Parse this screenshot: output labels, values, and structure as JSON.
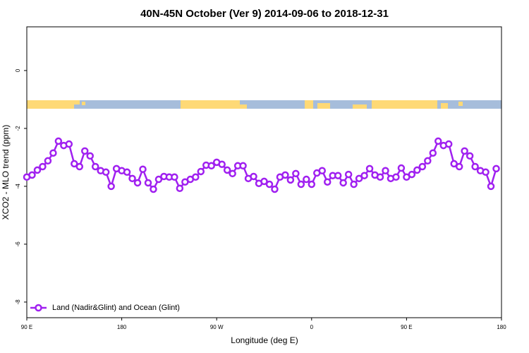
{
  "chart_data": {
    "type": "line",
    "title": "40N-45N October (Ver 9)   2014-09-06 to 2018-12-31",
    "x_label": "Longitude (deg E)",
    "y_label": "XCO2 - MLO trend (ppm)",
    "x": [
      90,
      95,
      100,
      105,
      110,
      115,
      120,
      125,
      130,
      135,
      140,
      145,
      150,
      155,
      160,
      165,
      170,
      175,
      180,
      185,
      190,
      195,
      200,
      205,
      210,
      215,
      220,
      225,
      230,
      235,
      240,
      245,
      250,
      255,
      260,
      265,
      270,
      275,
      280,
      285,
      290,
      295,
      300,
      305,
      310,
      315,
      320,
      325,
      330,
      335,
      340,
      345,
      350,
      355,
      360,
      365,
      370,
      375,
      380,
      385,
      390,
      395,
      400,
      405,
      410,
      415,
      420,
      425,
      430,
      435,
      440,
      445,
      450,
      455,
      460,
      465,
      470,
      475,
      480,
      485,
      490,
      495,
      500,
      505,
      510,
      515,
      520,
      525,
      530,
      535
    ],
    "series": [
      {
        "name": "Land (Nadir&Glint) and Ocean (Glint)",
        "color": "#a020f0",
        "values": [
          -3.68,
          -3.61,
          -3.44,
          -3.32,
          -3.12,
          -2.85,
          -2.44,
          -2.59,
          -2.54,
          -3.22,
          -3.32,
          -2.78,
          -2.95,
          -3.32,
          -3.46,
          -3.51,
          -4.0,
          -3.39,
          -3.46,
          -3.51,
          -3.73,
          -3.88,
          -3.41,
          -3.88,
          -4.1,
          -3.76,
          -3.66,
          -3.68,
          -3.68,
          -4.07,
          -3.85,
          -3.76,
          -3.68,
          -3.49,
          -3.27,
          -3.29,
          -3.17,
          -3.24,
          -3.44,
          -3.56,
          -3.29,
          -3.29,
          -3.73,
          -3.66,
          -3.9,
          -3.83,
          -3.93,
          -4.1,
          -3.68,
          -3.61,
          -3.78,
          -3.56,
          -3.93,
          -3.76,
          -3.93,
          -3.54,
          -3.46,
          -3.85,
          -3.63,
          -3.63,
          -3.88,
          -3.59,
          -3.93,
          -3.73,
          -3.63,
          -3.39,
          -3.61,
          -3.68,
          -3.46,
          -3.73,
          -3.68,
          -3.37,
          -3.68,
          -3.59,
          -3.44,
          -3.32,
          -3.12,
          -2.85,
          -2.44,
          -2.59,
          -2.54,
          -3.22,
          -3.32,
          -2.78,
          -2.95,
          -3.32,
          -3.46,
          -3.51,
          -4.0,
          -3.39
        ]
      }
    ],
    "xlim": [
      90,
      540
    ],
    "xticks": [
      {
        "value": 90,
        "label": "90 E"
      },
      180,
      {
        "value": 270,
        "label": "90 W"
      },
      {
        "value": 360,
        "label": "0"
      },
      {
        "value": 450,
        "label": "90 E"
      },
      {
        "value": 540,
        "label": "180"
      }
    ],
    "ylim": [
      -8.54,
      1.51
    ],
    "yticks": [
      0,
      -2,
      -4,
      -6,
      -8
    ],
    "legend": "bottom-left"
  }
}
